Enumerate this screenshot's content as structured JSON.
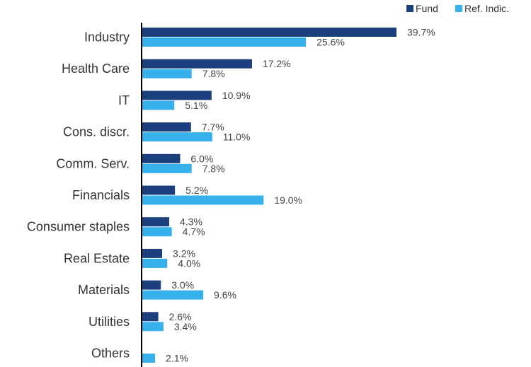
{
  "chart_data": {
    "type": "bar",
    "orientation": "horizontal",
    "categories": [
      "Industry",
      "Health Care",
      "IT",
      "Cons. discr.",
      "Comm. Serv.",
      "Financials",
      "Consumer staples",
      "Real Estate",
      "Materials",
      "Utilities",
      "Others"
    ],
    "series": [
      {
        "name": "Fund",
        "color": "#1c3f7e",
        "values": [
          39.7,
          17.2,
          10.9,
          7.7,
          6.0,
          5.2,
          4.3,
          3.2,
          3.0,
          2.6,
          null
        ],
        "labels": [
          "39.7%",
          "17.2%",
          "10.9%",
          "7.7%",
          "6.0%",
          "5.2%",
          "4.3%",
          "3.2%",
          "3.0%",
          "2.6%",
          ""
        ]
      },
      {
        "name": "Ref. Indic.",
        "color": "#36b1ec",
        "values": [
          25.6,
          7.8,
          5.1,
          11.0,
          7.8,
          19.0,
          4.7,
          4.0,
          9.6,
          3.4,
          2.1
        ],
        "labels": [
          "25.6%",
          "7.8%",
          "5.1%",
          "11.0%",
          "7.8%",
          "19.0%",
          "4.7%",
          "4.0%",
          "9.6%",
          "3.4%",
          "2.1%"
        ]
      }
    ],
    "xlim": [
      0,
      40
    ],
    "grid": false,
    "legend_position": "top-right",
    "title": "",
    "xlabel": "",
    "ylabel": ""
  }
}
